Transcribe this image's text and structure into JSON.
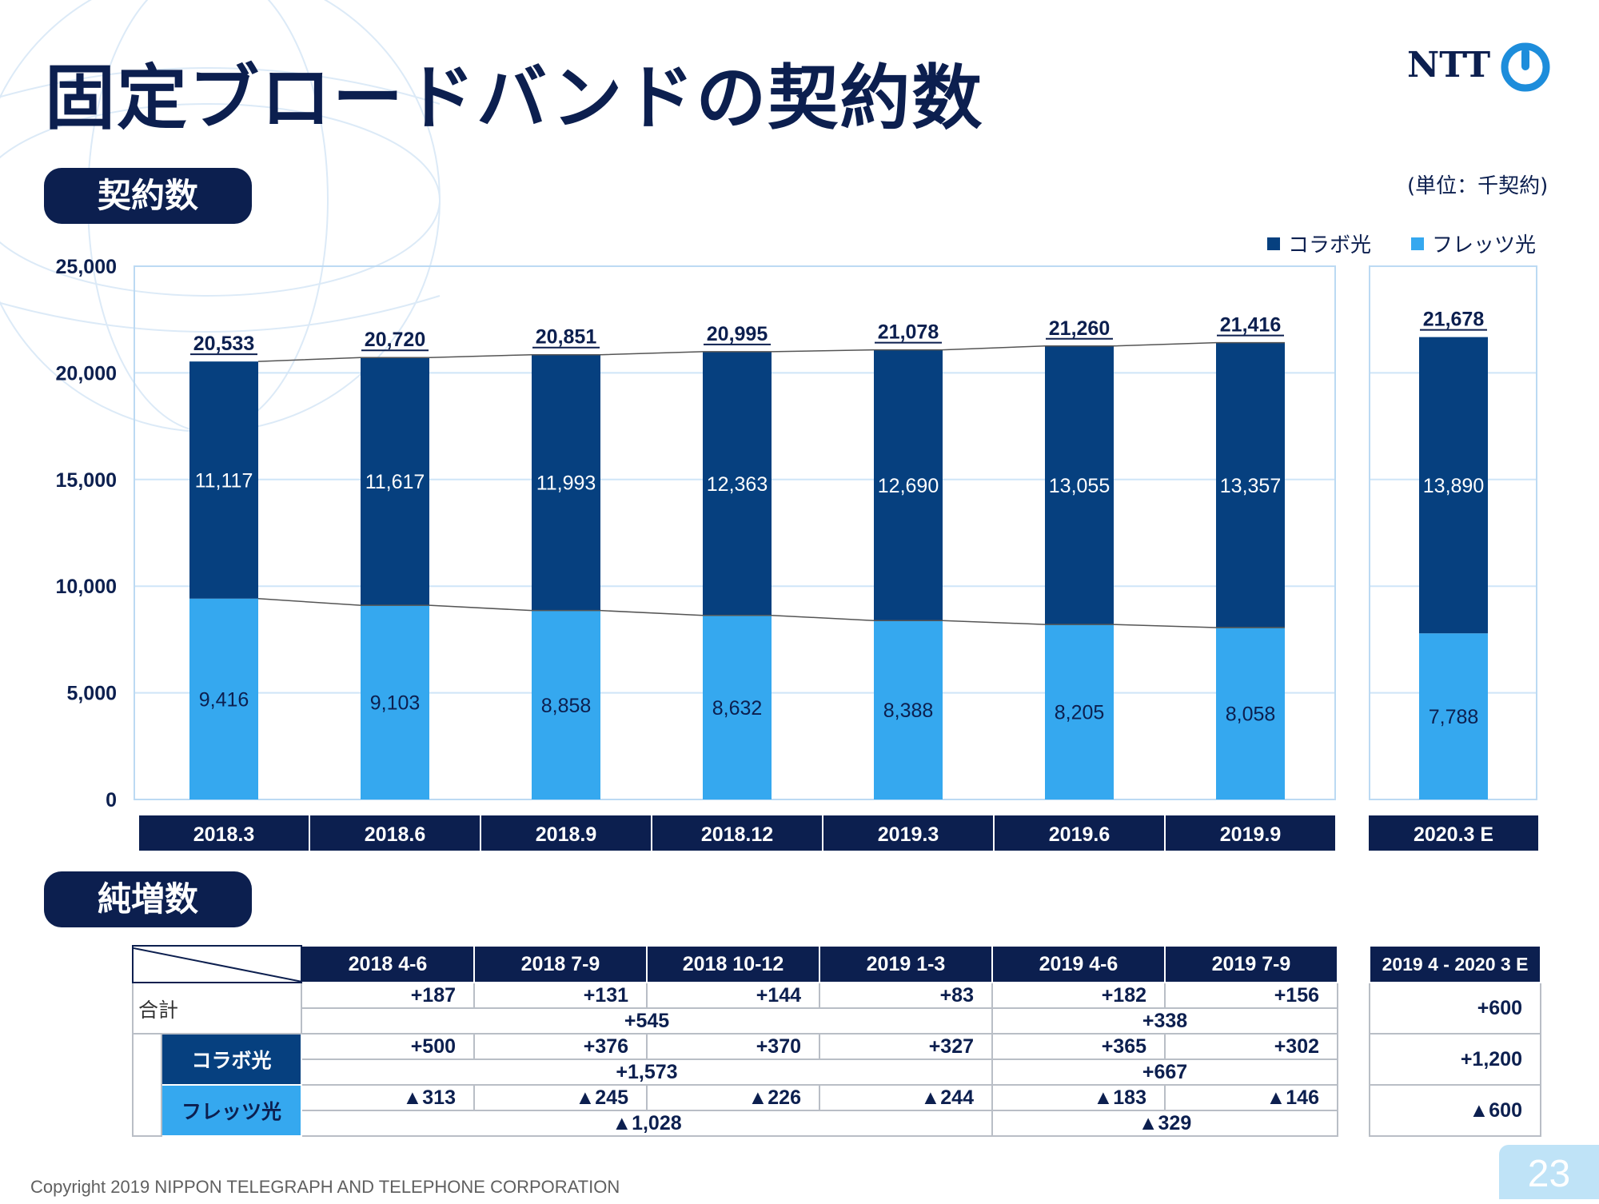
{
  "title": "固定ブロードバンドの契約数",
  "logo_text": "NTT",
  "section_contracts": "契約数",
  "section_net_increase": "純増数",
  "unit_label": "(単位：千契約)",
  "legend": {
    "collabo": "コラボ光",
    "flets": "フレッツ光"
  },
  "colors": {
    "collabo": "#06407f",
    "flets": "#35a8ef",
    "navy": "#0c1f4f",
    "gridline": "#cfe5f8"
  },
  "chart_data": {
    "type": "bar",
    "stacked": true,
    "categories": [
      "2018.3",
      "2018.6",
      "2018.9",
      "2018.12",
      "2019.3",
      "2019.6",
      "2019.9",
      "2020.3 E"
    ],
    "series": [
      {
        "name": "フレッツ光",
        "values": [
          9416,
          9103,
          8858,
          8632,
          8388,
          8205,
          8058,
          7788
        ],
        "labels": [
          "9,416",
          "9,103",
          "8,858",
          "8,632",
          "8,388",
          "8,205",
          "8,058",
          "7,788"
        ]
      },
      {
        "name": "コラボ光",
        "values": [
          11117,
          11617,
          11993,
          12363,
          12690,
          13055,
          13357,
          13890
        ],
        "labels": [
          "11,117",
          "11,617",
          "11,993",
          "12,363",
          "12,690",
          "13,055",
          "13,357",
          "13,890"
        ]
      }
    ],
    "totals": [
      20533,
      20720,
      20851,
      20995,
      21078,
      21260,
      21416,
      21678
    ],
    "total_labels": [
      "20,533",
      "20,720",
      "20,851",
      "20,995",
      "21,078",
      "21,260",
      "21,416",
      "21,678"
    ],
    "ylim": [
      0,
      25000
    ],
    "yticks": [
      "0",
      "5,000",
      "10,000",
      "15,000",
      "20,000",
      "25,000"
    ],
    "grid": true,
    "legend_position": "top-right"
  },
  "net_increase": {
    "periods": [
      "2018 4-6",
      "2018 7-9",
      "2018 10-12",
      "2019 1-3",
      "2019 4-6",
      "2019 7-9"
    ],
    "forecast_period": "2019 4 - 2020 3 E",
    "rows": {
      "total": {
        "label": "合計",
        "quarterly": [
          "+187",
          "+131",
          "+144",
          "+83",
          "+182",
          "+156"
        ],
        "fy2018": "+545",
        "fy2019h1": "+338",
        "forecast": "+600"
      },
      "collabo": {
        "label": "コラボ光",
        "quarterly": [
          "+500",
          "+376",
          "+370",
          "+327",
          "+365",
          "+302"
        ],
        "fy2018": "+1,573",
        "fy2019h1": "+667",
        "forecast": "+1,200"
      },
      "flets": {
        "label": "フレッツ光",
        "quarterly": [
          "▲313",
          "▲245",
          "▲226",
          "▲244",
          "▲183",
          "▲146"
        ],
        "fy2018": "▲1,028",
        "fy2019h1": "▲329",
        "forecast": "▲600"
      }
    }
  },
  "copyright": "Copyright 2019 NIPPON TELEGRAPH AND TELEPHONE CORPORATION",
  "page_number": "23"
}
